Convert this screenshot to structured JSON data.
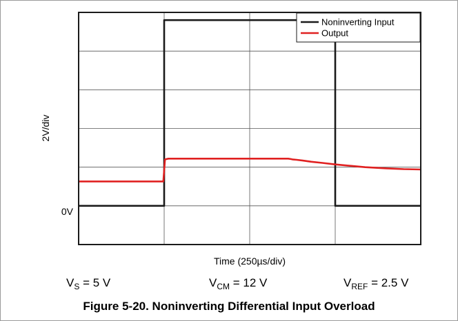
{
  "chart_data": {
    "type": "line",
    "ylabel": "2V/div",
    "xlabel": "Time (250µs/div)",
    "zero_label": "0V",
    "x_divisions": 4,
    "y_divisions": 6,
    "xlim": [
      0,
      4
    ],
    "ylim": [
      -1,
      5
    ],
    "legend": {
      "placement": "top-right"
    },
    "grid": true,
    "series": [
      {
        "name": "Noninverting Input",
        "color": "#1a1a1a",
        "x": [
          0,
          1,
          1,
          3,
          3,
          4
        ],
        "y": [
          0,
          0,
          4.8,
          4.8,
          0,
          0
        ]
      },
      {
        "name": "Output",
        "color": "#e02020",
        "x": [
          0,
          0.99,
          1.01,
          1.05,
          2.4,
          2.45,
          2.48,
          2.5,
          2.55,
          2.62,
          2.72,
          2.85,
          3.0,
          3.15,
          3.35,
          3.6,
          3.8,
          4.0
        ],
        "y": [
          0.63,
          0.63,
          1.2,
          1.22,
          1.22,
          1.22,
          1.21,
          1.2,
          1.19,
          1.17,
          1.14,
          1.11,
          1.07,
          1.04,
          1.0,
          0.97,
          0.95,
          0.94
        ]
      }
    ]
  },
  "conditions": {
    "vs": {
      "main": "V",
      "sub": "S",
      "rest": " = 5 V"
    },
    "vcm": {
      "main": "V",
      "sub": "CM",
      "rest": " = 12 V"
    },
    "vref": {
      "main": "V",
      "sub": "REF",
      "rest": " = 2.5 V"
    }
  },
  "caption": "Figure 5-20. Noninverting Differential Input Overload"
}
